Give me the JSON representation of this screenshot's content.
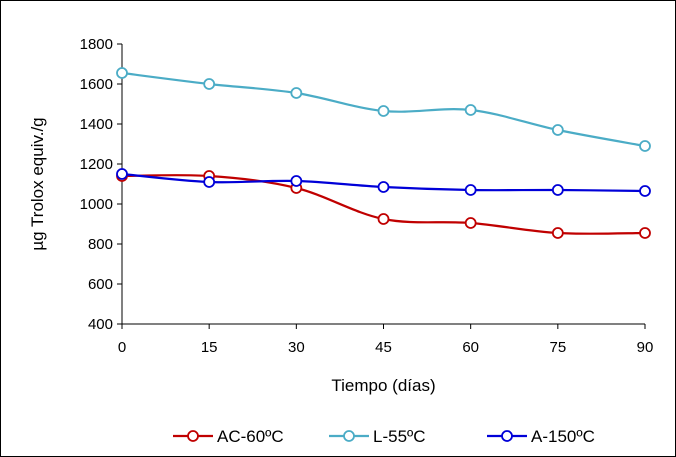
{
  "chart_data": {
    "type": "line",
    "title": "",
    "xlabel": "Tiempo (días)",
    "ylabel": "µg Trolox equiv./g",
    "x": [
      0,
      15,
      30,
      45,
      60,
      75,
      90
    ],
    "xlim": [
      0,
      90
    ],
    "ylim": [
      400,
      1800
    ],
    "yticks": [
      400,
      600,
      800,
      1000,
      1200,
      1400,
      1600,
      1800
    ],
    "xticks": [
      0,
      15,
      30,
      45,
      60,
      75,
      90
    ],
    "grid": false,
    "legend_position": "bottom",
    "series": [
      {
        "name": "AC-60ºC",
        "color": "#c00000",
        "values": [
          1140,
          1140,
          1080,
          925,
          905,
          855,
          855
        ]
      },
      {
        "name": "L-55ºC",
        "color": "#4bacc6",
        "values": [
          1655,
          1600,
          1555,
          1465,
          1470,
          1370,
          1290
        ]
      },
      {
        "name": "A-150ºC",
        "color": "#0000d8",
        "values": [
          1150,
          1110,
          1115,
          1085,
          1070,
          1070,
          1065
        ]
      }
    ]
  }
}
